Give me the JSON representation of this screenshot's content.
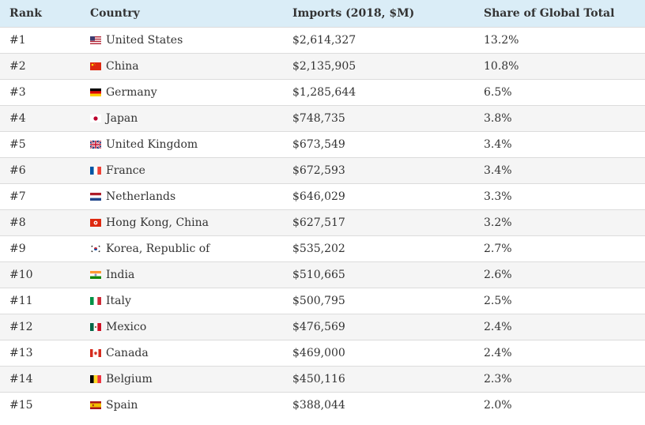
{
  "chart_data": {
    "type": "table",
    "columns": [
      "Rank",
      "Country",
      "Imports (2018, $M)",
      "Share of Global Total"
    ],
    "rows": [
      {
        "rank": "#1",
        "country": "United States",
        "imports": "$2,614,327",
        "share": "13.2%",
        "flag": "us-flag-icon"
      },
      {
        "rank": "#2",
        "country": "China",
        "imports": "$2,135,905",
        "share": "10.8%",
        "flag": "china-flag-icon"
      },
      {
        "rank": "#3",
        "country": "Germany",
        "imports": "$1,285,644",
        "share": "6.5%",
        "flag": "germany-flag-icon"
      },
      {
        "rank": "#4",
        "country": "Japan",
        "imports": "$748,735",
        "share": "3.8%",
        "flag": "japan-flag-icon"
      },
      {
        "rank": "#5",
        "country": "United Kingdom",
        "imports": "$673,549",
        "share": "3.4%",
        "flag": "uk-flag-icon"
      },
      {
        "rank": "#6",
        "country": "France",
        "imports": "$672,593",
        "share": "3.4%",
        "flag": "france-flag-icon"
      },
      {
        "rank": "#7",
        "country": "Netherlands",
        "imports": "$646,029",
        "share": "3.3%",
        "flag": "netherlands-flag-icon"
      },
      {
        "rank": "#8",
        "country": "Hong Kong, China",
        "imports": "$627,517",
        "share": "3.2%",
        "flag": "hong-kong-flag-icon"
      },
      {
        "rank": "#9",
        "country": "Korea, Republic of",
        "imports": "$535,202",
        "share": "2.7%",
        "flag": "south-korea-flag-icon"
      },
      {
        "rank": "#10",
        "country": "India",
        "imports": "$510,665",
        "share": "2.6%",
        "flag": "india-flag-icon"
      },
      {
        "rank": "#11",
        "country": "Italy",
        "imports": "$500,795",
        "share": "2.5%",
        "flag": "italy-flag-icon"
      },
      {
        "rank": "#12",
        "country": "Mexico",
        "imports": "$476,569",
        "share": "2.4%",
        "flag": "mexico-flag-icon"
      },
      {
        "rank": "#13",
        "country": "Canada",
        "imports": "$469,000",
        "share": "2.4%",
        "flag": "canada-flag-icon"
      },
      {
        "rank": "#14",
        "country": "Belgium",
        "imports": "$450,116",
        "share": "2.3%",
        "flag": "belgium-flag-icon"
      },
      {
        "rank": "#15",
        "country": "Spain",
        "imports": "$388,044",
        "share": "2.0%",
        "flag": "spain-flag-icon"
      }
    ]
  },
  "colors": {
    "header_bg": "#daedf7",
    "row_alt_bg": "#f5f5f5",
    "row_divider": "#dcdcdc",
    "text": "#333333"
  }
}
